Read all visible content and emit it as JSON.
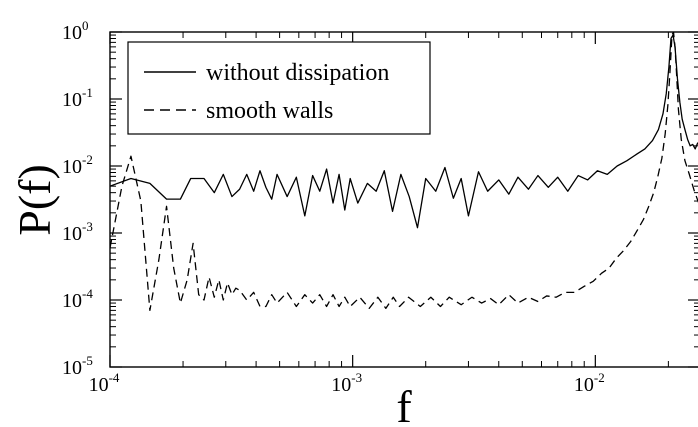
{
  "chart_data": {
    "type": "line",
    "xlabel": "f",
    "ylabel": "P(f)",
    "xscale": "log",
    "yscale": "log",
    "xlim": [
      0.0001,
      0.027
    ],
    "ylim": [
      1e-05,
      1
    ],
    "grid": false,
    "legend_position": "top-left",
    "x_ticks": [
      {
        "base": "10",
        "exp": "-4",
        "value": 0.0001
      },
      {
        "base": "10",
        "exp": "-3",
        "value": 0.001
      },
      {
        "base": "10",
        "exp": "-2",
        "value": 0.01
      }
    ],
    "y_ticks": [
      {
        "base": "10",
        "exp": "0",
        "value": 1
      },
      {
        "base": "10",
        "exp": "-1",
        "value": 0.1
      },
      {
        "base": "10",
        "exp": "-2",
        "value": 0.01
      },
      {
        "base": "10",
        "exp": "-3",
        "value": 0.001
      },
      {
        "base": "10",
        "exp": "-4",
        "value": 0.0001
      },
      {
        "base": "10",
        "exp": "-5",
        "value": 1e-05
      }
    ],
    "series": [
      {
        "name": "without dissipation",
        "style": "solid",
        "color": "#000000",
        "x": [
          0.0001,
          0.000122,
          0.000146,
          0.000171,
          0.000195,
          0.000215,
          0.000244,
          0.000269,
          0.000293,
          0.000318,
          0.000342,
          0.000366,
          0.000391,
          0.000415,
          0.000439,
          0.000464,
          0.000488,
          0.000537,
          0.000586,
          0.000635,
          0.000684,
          0.000732,
          0.000781,
          0.00083,
          0.000879,
          0.000928,
          0.000977,
          0.00105,
          0.00115,
          0.00125,
          0.00135,
          0.00146,
          0.00158,
          0.00171,
          0.00185,
          0.002,
          0.0022,
          0.0024,
          0.0026,
          0.0028,
          0.003,
          0.0033,
          0.0036,
          0.004,
          0.0044,
          0.0048,
          0.0053,
          0.0058,
          0.0064,
          0.007,
          0.0077,
          0.0085,
          0.0093,
          0.0102,
          0.0112,
          0.0123,
          0.0135,
          0.0148,
          0.016,
          0.0172,
          0.0182,
          0.019,
          0.0196,
          0.0201,
          0.0205,
          0.0209,
          0.0213,
          0.0218,
          0.0223,
          0.0228,
          0.0234,
          0.024,
          0.0246,
          0.0252,
          0.0258,
          0.0264,
          0.027
        ],
        "y": [
          0.005,
          0.0065,
          0.0055,
          0.0032,
          0.0032,
          0.0065,
          0.0065,
          0.004,
          0.0075,
          0.0035,
          0.0045,
          0.0075,
          0.0042,
          0.0085,
          0.0048,
          0.0032,
          0.0075,
          0.0035,
          0.0068,
          0.0018,
          0.0072,
          0.0042,
          0.009,
          0.0028,
          0.0075,
          0.0022,
          0.0065,
          0.0028,
          0.0055,
          0.0042,
          0.0085,
          0.0021,
          0.0075,
          0.0035,
          0.0012,
          0.0065,
          0.0042,
          0.0095,
          0.0033,
          0.0065,
          0.0018,
          0.0082,
          0.0042,
          0.0062,
          0.0038,
          0.0068,
          0.0045,
          0.0072,
          0.0048,
          0.0068,
          0.0042,
          0.0072,
          0.0062,
          0.0085,
          0.0075,
          0.01,
          0.012,
          0.015,
          0.018,
          0.024,
          0.035,
          0.06,
          0.12,
          0.3,
          0.8,
          0.9,
          0.6,
          0.2,
          0.09,
          0.05,
          0.035,
          0.025,
          0.02,
          0.021,
          0.018,
          0.022,
          0.02
        ]
      },
      {
        "name": "smooth walls",
        "style": "dashed",
        "color": "#000000",
        "x": [
          0.0001,
          0.000112,
          0.000122,
          0.000134,
          0.000146,
          0.000159,
          0.000171,
          0.000183,
          0.000195,
          0.000208,
          0.00022,
          0.000232,
          0.000244,
          0.000256,
          0.000269,
          0.000281,
          0.000293,
          0.000305,
          0.000318,
          0.00033,
          0.000342,
          0.000366,
          0.000391,
          0.000415,
          0.000439,
          0.000464,
          0.000488,
          0.000537,
          0.000586,
          0.000635,
          0.000684,
          0.000732,
          0.000781,
          0.00083,
          0.000879,
          0.000928,
          0.000977,
          0.00107,
          0.00117,
          0.00127,
          0.00137,
          0.00147,
          0.00156,
          0.0017,
          0.0019,
          0.0021,
          0.0023,
          0.0025,
          0.0028,
          0.0031,
          0.0034,
          0.0037,
          0.004,
          0.0044,
          0.0048,
          0.0053,
          0.0058,
          0.0063,
          0.0069,
          0.0075,
          0.0082,
          0.009,
          0.0098,
          0.0106,
          0.0114,
          0.0122,
          0.0131,
          0.014,
          0.0149,
          0.0158,
          0.0166,
          0.0174,
          0.0181,
          0.0188,
          0.0194,
          0.0199,
          0.0203,
          0.0207,
          0.021,
          0.0213,
          0.0216,
          0.022,
          0.0226,
          0.0234,
          0.0244,
          0.0256,
          0.027
        ],
        "y": [
          0.0006,
          0.005,
          0.014,
          0.003,
          7e-05,
          0.0004,
          0.0025,
          0.0003,
          9e-05,
          0.0002,
          0.0007,
          0.00012,
          0.0001,
          0.00022,
          0.00011,
          0.0002,
          0.0001,
          0.00018,
          0.00012,
          0.00015,
          0.00014,
          0.0001,
          0.00013,
          8e-05,
          8e-05,
          0.00012,
          9e-05,
          0.00013,
          8e-05,
          0.00012,
          9e-05,
          0.00012,
          8e-05,
          0.00012,
          8e-05,
          0.00011,
          8e-05,
          0.00011,
          7.5e-05,
          0.00011,
          7.5e-05,
          0.00011,
          8e-05,
          0.00011,
          8e-05,
          0.00011,
          8e-05,
          0.00011,
          8.5e-05,
          0.00011,
          9e-05,
          0.000105,
          8.5e-05,
          0.00012,
          9e-05,
          0.00011,
          9.5e-05,
          0.000115,
          0.00011,
          0.00013,
          0.00013,
          0.00016,
          0.00019,
          0.00025,
          0.0003,
          0.00042,
          0.00055,
          0.00075,
          0.0011,
          0.0016,
          0.0025,
          0.004,
          0.007,
          0.013,
          0.03,
          0.08,
          0.25,
          0.9,
          1,
          0.6,
          0.25,
          0.07,
          0.025,
          0.012,
          0.0075,
          0.0042,
          0.0025
        ]
      }
    ]
  }
}
